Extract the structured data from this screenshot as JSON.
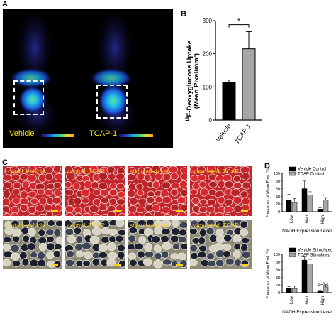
{
  "panels": {
    "a": "A",
    "b": "B",
    "c": "C",
    "d": "D"
  },
  "panel_a": {
    "left_label": "Vehicle",
    "right_label": "TCAP-1"
  },
  "panel_c": {
    "tiles": [
      "control; vehicle",
      "control; TCAP",
      "stimulated; veh",
      "stimulated; TCAP",
      "control; vehicle",
      "control; TCAP",
      "stimulated; veh",
      "stimulated; TCAP"
    ]
  },
  "chart_data": [
    {
      "type": "bar",
      "panel": "B",
      "categories": [
        "Vehicle",
        "TCAP-1"
      ],
      "values": [
        113,
        215
      ],
      "errors": [
        8,
        52
      ],
      "ylabel_sup": "18",
      "ylabel_main": "F-Deoxyglucose Uptake",
      "ylabel_unit": "(Mean Pixel/mm³)",
      "ylim": [
        0,
        300
      ],
      "yticks": [
        "0",
        "100",
        "200",
        "300"
      ],
      "significance": "*",
      "colors": [
        "#000000",
        "#a6a6a6"
      ]
    },
    {
      "type": "bar",
      "panel": "D-top",
      "categories": [
        "Low",
        "Med",
        "High"
      ],
      "series": [
        {
          "name": "Vehicle Control",
          "values": [
            31,
            60,
            7
          ],
          "errors": [
            14,
            20,
            3
          ]
        },
        {
          "name": "TCAP Control",
          "values": [
            24,
            44,
            31
          ],
          "errors": [
            10,
            8,
            6
          ]
        }
      ],
      "ylabel": "Frequency of Mean Pixel (%)",
      "xlabel": "NADH Expression Level",
      "ylim": [
        0,
        100
      ],
      "yticks": [
        "0",
        "20",
        "40",
        "60",
        "80",
        "100"
      ],
      "annotations": [
        "*"
      ]
    },
    {
      "type": "bar",
      "panel": "D-bottom",
      "categories": [
        "Low",
        "Med",
        "High"
      ],
      "series": [
        {
          "name": "Vehicle Stimulated",
          "values": [
            11,
            85,
            5
          ],
          "errors": [
            5,
            10,
            2
          ]
        },
        {
          "name": "TCAP Stimulated",
          "values": [
            11,
            75,
            15
          ],
          "errors": [
            6,
            12,
            6
          ]
        }
      ],
      "ylabel": "Frequency of Mean Pixel (%)",
      "xlabel": "NADH Expression Level",
      "ylim": [
        0,
        100
      ],
      "yticks": [
        "0",
        "20",
        "40",
        "60",
        "80",
        "100"
      ],
      "annotations": [
        "p=0.1"
      ]
    }
  ]
}
